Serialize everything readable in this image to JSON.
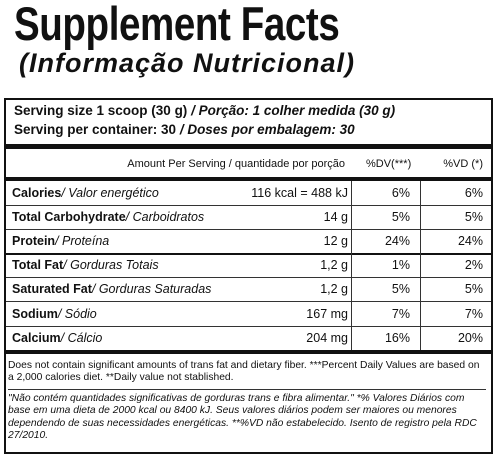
{
  "title": "Supplement Facts",
  "subtitle": "(Informação Nutricional)",
  "serving": [
    {
      "en": "Serving size 1 scoop (30 g)",
      "pt": " / Porção: 1 colher medida (30 g)"
    },
    {
      "en": "Serving per container: 30",
      "pt": " / Doses por embalagem: 30"
    }
  ],
  "table": {
    "header": [
      "Amount Per Serving / quantidade por porção",
      "%DV(***)",
      "%VD (*)"
    ],
    "rows": [
      {
        "name": "Calories",
        "pt": " / Valor energético",
        "amount": "116 kcal = 488 kJ",
        "dv": "6%",
        "vd": "6%"
      },
      {
        "name": "Total Carbohydrate",
        "pt": " / Carboidratos",
        "amount": "14 g",
        "dv": "5%",
        "vd": "5%"
      },
      {
        "name": "Protein",
        "pt": " / Proteína",
        "amount": "12 g",
        "dv": "24%",
        "vd": "24%"
      },
      {
        "name": "Total Fat",
        "pt": " / Gorduras Totais",
        "amount": "1,2 g",
        "dv": "1%",
        "vd": "2%"
      },
      {
        "name": "Saturated Fat",
        "pt": " / Gorduras Saturadas",
        "amount": "1,2 g",
        "dv": "5%",
        "vd": "5%"
      },
      {
        "name": "Sodium",
        "pt": " / Sódio",
        "amount": "167 mg",
        "dv": "7%",
        "vd": "7%"
      },
      {
        "name": "Calcium",
        "pt": " / Cálcio",
        "amount": "204 mg",
        "dv": "16%",
        "vd": "20%"
      }
    ]
  },
  "footnotes": [
    "Does not contain significant amounts of trans fat and dietary fiber. ***Percent Daily Values are based on a 2,000 calories diet. **Daily value not stablished.",
    "\"Não contém quantidades significativas de gorduras trans e fibra alimentar.\" *% Valores Diários com base em uma dieta de 2000 kcal ou 8400 kJ. Seus valores diários podem ser maiores ou menores dependendo de suas necessidades energéticas. **%VD não estabelecido. Isento de registro pela RDC 27/2010."
  ]
}
